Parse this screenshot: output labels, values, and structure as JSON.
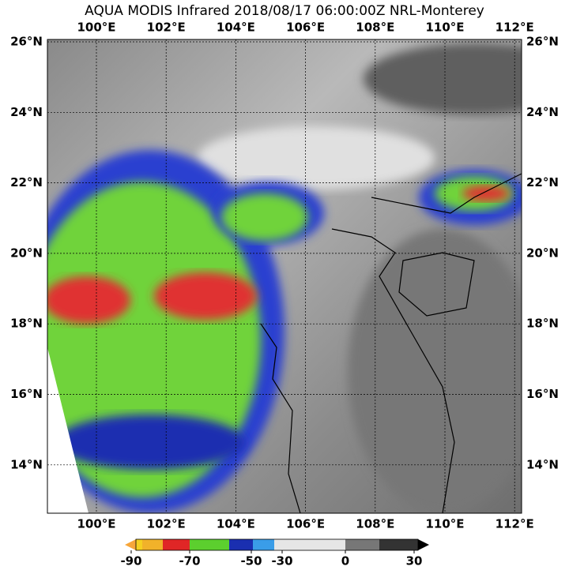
{
  "title": "AQUA MODIS Infrared 2018/08/17 06:00:00Z NRL-Monterey",
  "lon_labels": [
    "100°E",
    "102°E",
    "104°E",
    "106°E",
    "108°E",
    "110°E",
    "112°E"
  ],
  "lat_labels": [
    "26°N",
    "24°N",
    "22°N",
    "20°N",
    "18°N",
    "16°N",
    "14°N"
  ],
  "colorbar": {
    "ticks": [
      -90,
      -70,
      -50,
      -30,
      0,
      30
    ]
  }
}
